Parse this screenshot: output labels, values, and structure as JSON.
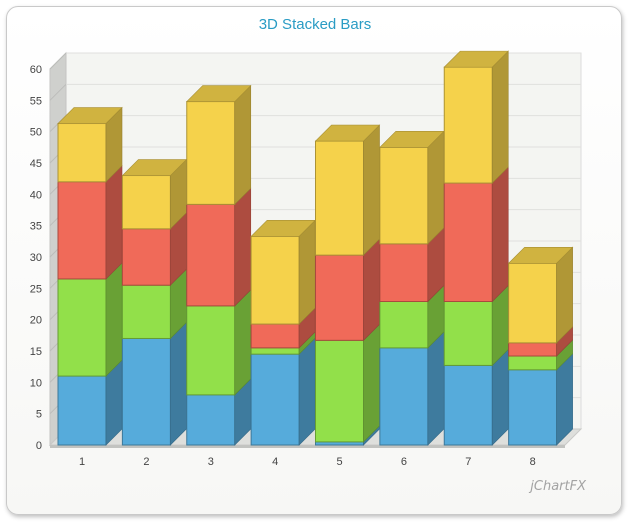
{
  "chart_data": {
    "type": "bar",
    "stacked": true,
    "three_d": true,
    "title": "3D Stacked Bars",
    "categories": [
      "1",
      "2",
      "3",
      "4",
      "5",
      "6",
      "7",
      "8"
    ],
    "series": [
      {
        "values": [
          11,
          17,
          8,
          14.5,
          0.5,
          15.5,
          12.7,
          12
        ],
        "color": "#56abdb"
      },
      {
        "values": [
          15.5,
          8.5,
          14.2,
          1,
          16.2,
          7.4,
          10.2,
          2.2
        ],
        "color": "#92e04a"
      },
      {
        "values": [
          15.5,
          9,
          16.2,
          3.8,
          13.6,
          9.2,
          18.9,
          2.1
        ],
        "color": "#f06a59"
      },
      {
        "values": [
          9.3,
          8.5,
          16.4,
          14,
          18.2,
          15.4,
          18.5,
          12.7
        ],
        "color": "#f5d24b"
      }
    ],
    "yticks": [
      0,
      5,
      10,
      15,
      20,
      25,
      30,
      35,
      40,
      45,
      50,
      55,
      60
    ],
    "ylim": [
      0,
      60
    ],
    "grid": true,
    "legend": "none"
  },
  "watermark": "jChartFX"
}
